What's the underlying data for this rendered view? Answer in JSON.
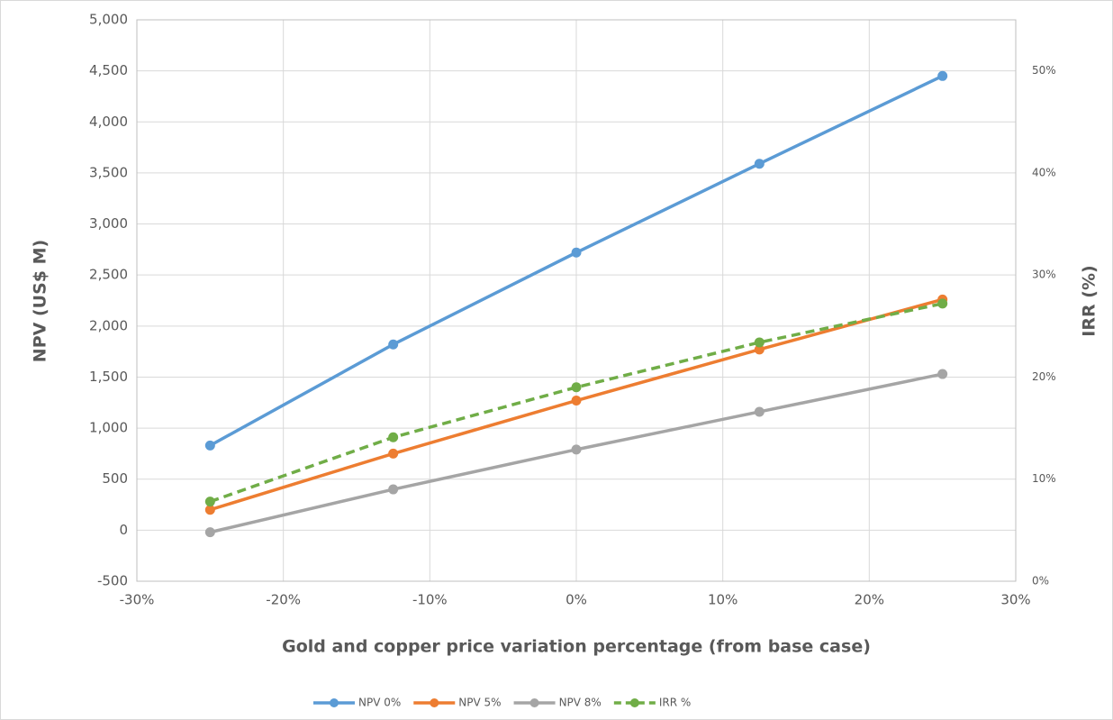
{
  "chart_data": {
    "type": "line",
    "x_label": "Gold and copper price variation percentage (from base case)",
    "y_label": "NPV (US$ M)",
    "y2_label": "IRR (%)",
    "x": [
      -25,
      -12.5,
      0,
      12.5,
      25
    ],
    "series": [
      {
        "name": "NPV 0%",
        "color": "#5b9bd5",
        "values": [
          830,
          1820,
          2720,
          3590,
          4450
        ]
      },
      {
        "name": "NPV 5%",
        "color": "#ed7d31",
        "values": [
          200,
          750,
          1270,
          1770,
          2260
        ]
      },
      {
        "name": "NPV 8%",
        "color": "#a5a5a5",
        "values": [
          -20,
          400,
          790,
          1160,
          1530
        ]
      },
      {
        "name": "IRR %",
        "color": "#70ad47",
        "axis": "y2",
        "dashed": true,
        "values": [
          7.8,
          14.1,
          19.0,
          23.4,
          27.2
        ]
      }
    ],
    "xlim": [
      -30,
      30
    ],
    "xticks": [
      {
        "value": -30,
        "label": "-30%"
      },
      {
        "value": -20,
        "label": "-20%"
      },
      {
        "value": -10,
        "label": "-10%"
      },
      {
        "value": 0,
        "label": "0%"
      },
      {
        "value": 10,
        "label": "10%"
      },
      {
        "value": 20,
        "label": "20%"
      },
      {
        "value": 30,
        "label": "30%"
      }
    ],
    "ylim": [
      -500,
      5000
    ],
    "yticks": [
      -500,
      0,
      500,
      {
        "value": 1000,
        "label": "1,000"
      },
      {
        "value": 1500,
        "label": "1,500"
      },
      {
        "value": 2000,
        "label": "2,000"
      },
      {
        "value": 2500,
        "label": "2,500"
      },
      {
        "value": 3000,
        "label": "3,000"
      },
      {
        "value": 3500,
        "label": "3,500"
      },
      {
        "value": 4000,
        "label": "4,000"
      },
      {
        "value": 4500,
        "label": "4,500"
      },
      {
        "value": 5000,
        "label": "5,000"
      }
    ],
    "y2lim": [
      0,
      55
    ],
    "y2ticks": [
      {
        "value": 0,
        "label": "0%"
      },
      {
        "value": 10,
        "label": "10%"
      },
      {
        "value": 20,
        "label": "20%"
      },
      {
        "value": 30,
        "label": "30%"
      },
      {
        "value": 40,
        "label": "40%"
      },
      {
        "value": 50,
        "label": "50%"
      }
    ],
    "grid": true,
    "legend": "bottom"
  }
}
